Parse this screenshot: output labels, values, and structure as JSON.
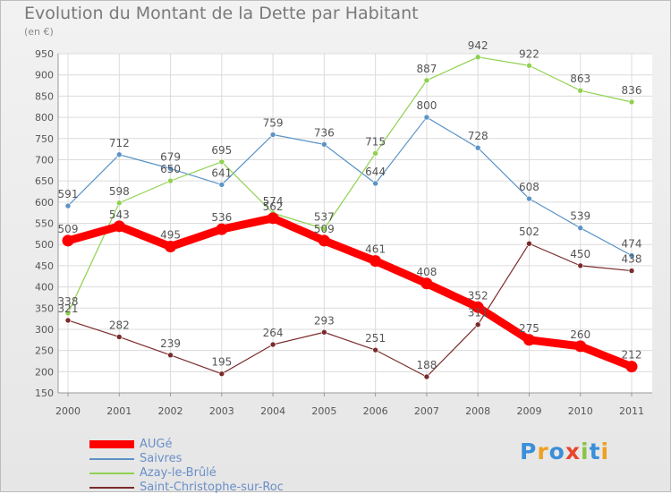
{
  "chart_data": {
    "type": "line",
    "title": "Evolution du Montant de la Dette par Habitant",
    "subtitle": "(en €)",
    "x": [
      "2000",
      "2001",
      "2002",
      "2003",
      "2004",
      "2005",
      "2006",
      "2007",
      "2008",
      "2009",
      "2010",
      "2011"
    ],
    "yticks": [
      "150",
      "200",
      "250",
      "300",
      "350",
      "400",
      "450",
      "500",
      "550",
      "600",
      "650",
      "700",
      "750",
      "800",
      "850",
      "900",
      "950"
    ],
    "ylim": [
      150,
      950
    ],
    "grid": true,
    "legend_position": "bottom-left",
    "series": [
      {
        "name": "AUGé",
        "color": "#ff0000",
        "width": 9,
        "values": [
          509,
          543,
          495,
          536,
          562,
          509,
          461,
          408,
          352,
          275,
          260,
          212
        ],
        "labels": [
          "509",
          "543",
          "495",
          "536",
          "562",
          "509",
          "461",
          "408",
          "352",
          "275",
          "260",
          "212"
        ]
      },
      {
        "name": "Saivres",
        "color": "#5b93c7",
        "width": 1.2,
        "values": [
          591,
          712,
          679,
          641,
          759,
          736,
          644,
          800,
          728,
          608,
          539,
          474
        ],
        "labels": [
          "591",
          "712",
          "679",
          "641",
          "759",
          "736",
          "644",
          "800",
          "728",
          "608",
          "539",
          "474"
        ]
      },
      {
        "name": "Azay-le-Brûlé",
        "color": "#8fd14f",
        "width": 1.2,
        "values": [
          338,
          598,
          650,
          695,
          574,
          537,
          715,
          887,
          942,
          922,
          863,
          836
        ],
        "labels": [
          "338",
          "598",
          "650",
          "695",
          "574",
          "537",
          "715",
          "887",
          "942",
          "922",
          "863",
          "836"
        ]
      },
      {
        "name": "Saint-Christophe-sur-Roc",
        "color": "#7a2b2b",
        "width": 1.2,
        "values": [
          321,
          282,
          239,
          195,
          264,
          293,
          251,
          188,
          311,
          502,
          450,
          438
        ],
        "labels": [
          "321",
          "282",
          "239",
          "195",
          "264",
          "293",
          "251",
          "188",
          "311",
          "502",
          "450",
          "438"
        ]
      }
    ]
  },
  "logo": {
    "letters": [
      "P",
      "r",
      "o",
      "x",
      "i",
      "t",
      "i"
    ],
    "colors": [
      "#3b8fd8",
      "#f0a020",
      "#3b8fd8",
      "#e8452c",
      "#8bc34a",
      "#3b8fd8",
      "#f0a020"
    ]
  }
}
